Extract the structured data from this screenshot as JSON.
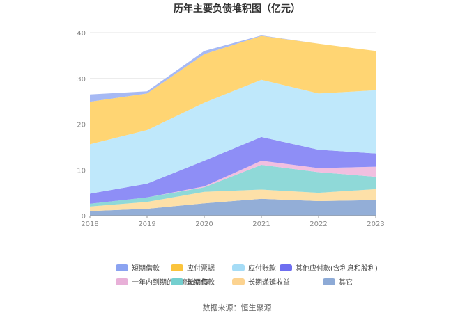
{
  "chart_data": {
    "type": "area",
    "stacked": true,
    "title": "历年主要负债堆积图（亿元）",
    "xlabel": "",
    "ylabel": "",
    "categories": [
      "2018",
      "2019",
      "2020",
      "2021",
      "2022",
      "2023"
    ],
    "ylim": [
      0,
      40
    ],
    "yticks": [
      "0",
      "10",
      "20",
      "30",
      "40"
    ],
    "grid": true,
    "legend_position": "bottom",
    "series": [
      {
        "name": "其它",
        "color": "#93aed7",
        "values": [
          1.0,
          1.5,
          2.7,
          3.7,
          3.2,
          3.4
        ]
      },
      {
        "name": "长期递延收益",
        "color": "#fde0a8",
        "values": [
          1.0,
          1.5,
          2.5,
          2.0,
          1.8,
          2.4
        ]
      },
      {
        "name": "长期借款",
        "color": "#8fd9d8",
        "values": [
          0.6,
          1.0,
          1.0,
          5.4,
          4.5,
          2.7
        ]
      },
      {
        "name": "一年内到期的非流动负债",
        "color": "#f1bfe0",
        "values": [
          0.0,
          0.0,
          0.2,
          0.9,
          0.9,
          2.2
        ]
      },
      {
        "name": "其他应付款(含利息和股利)",
        "color": "#8e8ef6",
        "values": [
          2.2,
          3.0,
          5.6,
          5.2,
          4.0,
          2.9
        ]
      },
      {
        "name": "应付账款",
        "color": "#bfe8fb",
        "values": [
          10.8,
          11.7,
          12.7,
          12.5,
          12.3,
          13.8
        ]
      },
      {
        "name": "应付票据",
        "color": "#ffd573",
        "values": [
          9.3,
          8.0,
          10.6,
          9.6,
          10.9,
          8.6
        ]
      },
      {
        "name": "短期借款",
        "color": "#a6b9f4",
        "values": [
          1.6,
          0.5,
          0.7,
          0.1,
          0.0,
          0.0
        ]
      }
    ],
    "legend": [
      [
        "短期借款",
        "应付票据",
        "应付账款",
        "其他应付款(含利息和股利)"
      ],
      [
        "一年内到期的非流动负债",
        "长期借款",
        "长期递延收益",
        "其它"
      ]
    ],
    "legend_colors": {
      "短期借款": "#8ba3f1",
      "应付票据": "#fbc43c",
      "应付账款": "#a5dcf6",
      "其他应付款(含利息和股利)": "#6e6ef0",
      "一年内到期的非流动负债": "#e8b0d8",
      "长期借款": "#74cfcf",
      "长期递延收益": "#fcd390",
      "其它": "#8daad6"
    }
  },
  "source": "数据来源：恒生聚源"
}
